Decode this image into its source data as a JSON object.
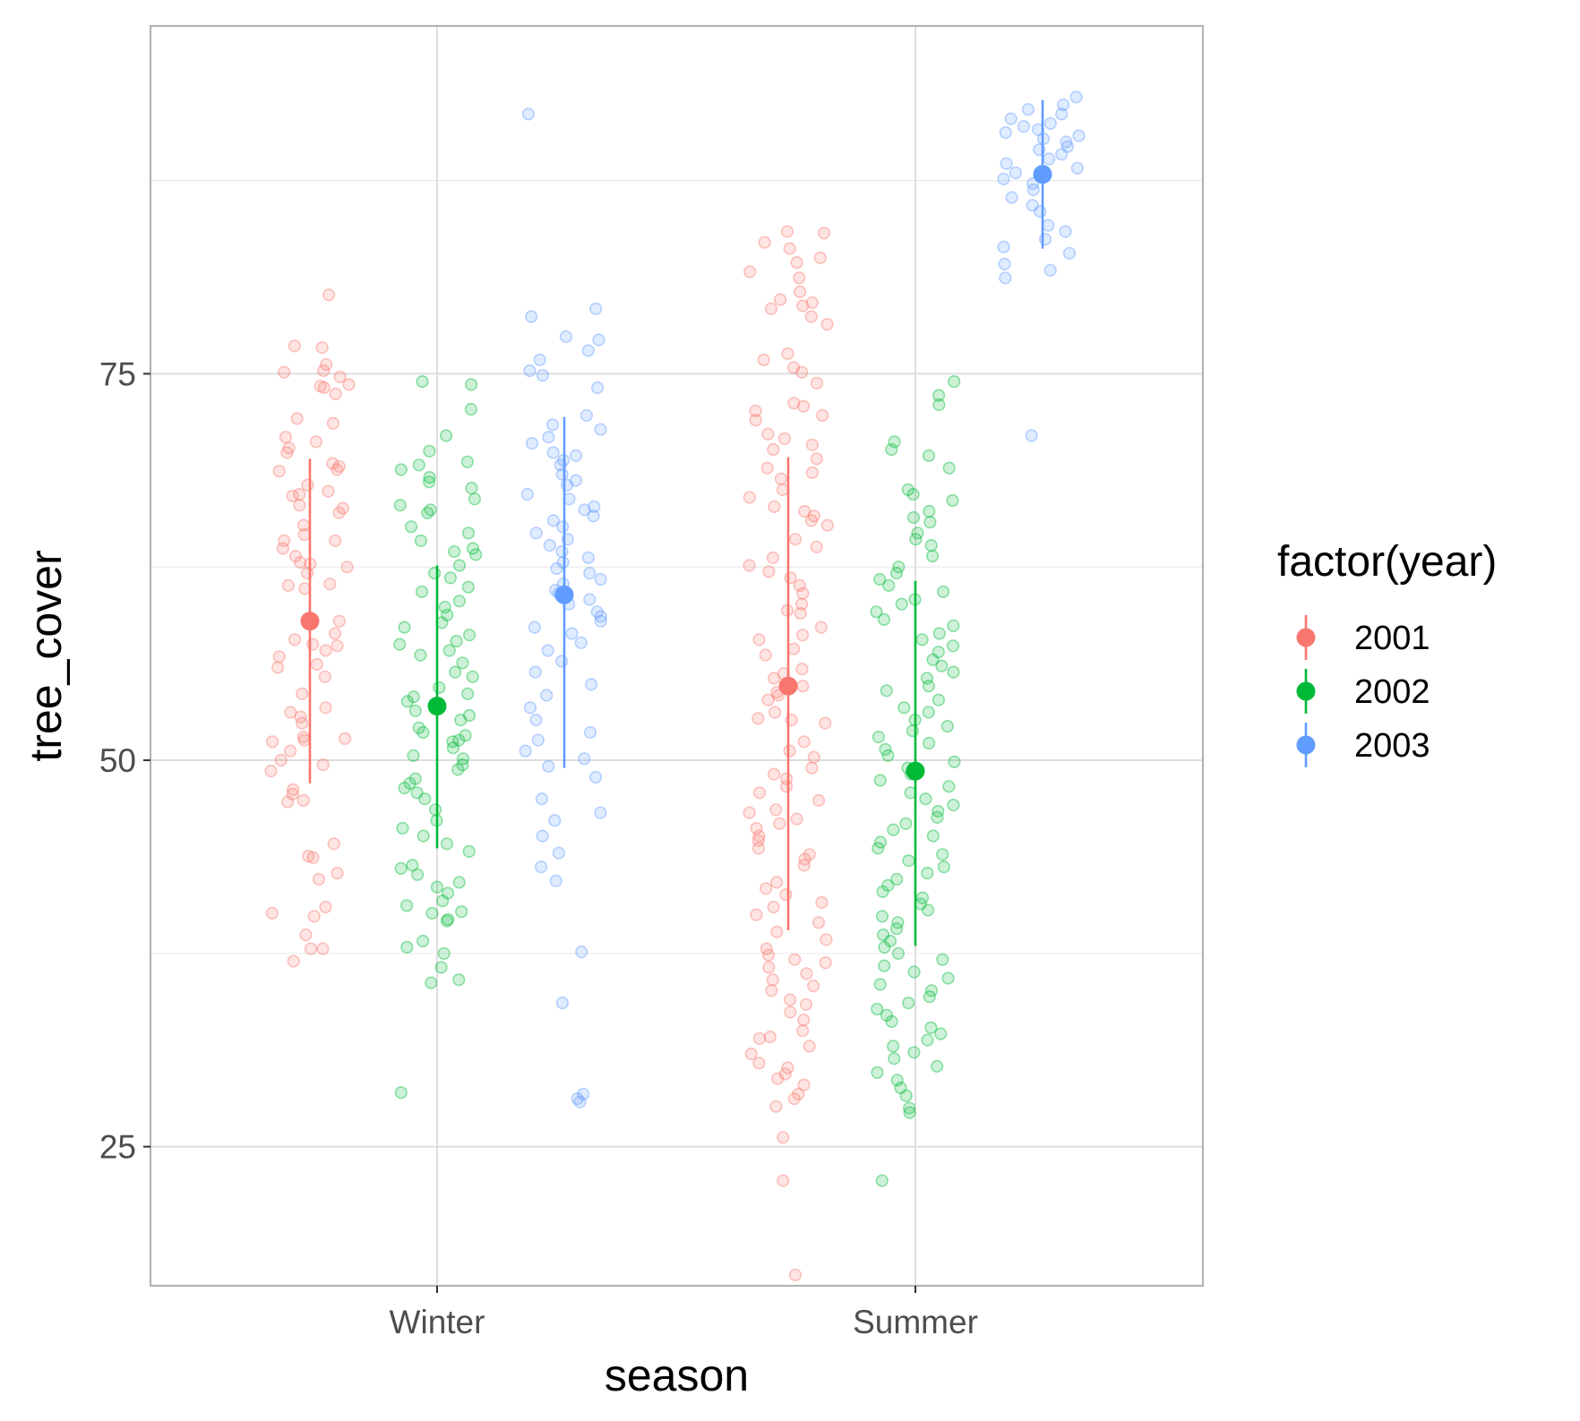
{
  "chart_data": {
    "type": "scatter",
    "title": "",
    "xlabel": "season",
    "ylabel": "tree_cover",
    "categories": [
      "Winter",
      "Summer"
    ],
    "ylim": [
      16,
      97.5
    ],
    "yticks": [
      25,
      50,
      75
    ],
    "grid": true,
    "legend": {
      "title": "factor(year)",
      "position": "right",
      "entries": [
        "2001",
        "2002",
        "2003"
      ]
    },
    "colors": {
      "2001": "#F8766D",
      "2002": "#00BA38",
      "2003": "#619CFF"
    },
    "series": [
      {
        "name": "2001",
        "groups": [
          {
            "category": "Winter",
            "mean": 59,
            "ymin": 48.5,
            "ymax": 69.5,
            "points": [
              76.7,
              76.8,
              74.2,
              74.3,
              74.1,
              75.2,
              75.1,
              74.8,
              75.6,
              73.7,
              80.1,
              72.1,
              71.8,
              70.9,
              70.6,
              70.2,
              69.9,
              69.2,
              69,
              68.8,
              68.7,
              67.8,
              67.4,
              67.2,
              67.1,
              66.5,
              66.3,
              66,
              65.2,
              64.6,
              64.2,
              64.2,
              63.7,
              63.2,
              62.8,
              62.7,
              62.5,
              62.1,
              61.4,
              61.3,
              61.1,
              59,
              58.2,
              57.8,
              57.5,
              57.4,
              57.1,
              56.7,
              56.2,
              56,
              55.4,
              54.3,
              53.4,
              53.1,
              52.8,
              52.4,
              51.5,
              51.4,
              51.3,
              51.2,
              50.6,
              50,
              49.7,
              49.3,
              48.1,
              47.8,
              47.4,
              47.3,
              44.6,
              43.8,
              43.7,
              42.7,
              42.3,
              40.5,
              40.1,
              39.9,
              38.7,
              37.8,
              37.8,
              37
            ]
          },
          {
            "category": "Summer",
            "mean": 54.8,
            "ymin": 39,
            "ymax": 69.6,
            "points": [
              84.2,
              84.1,
              83.5,
              83.1,
              82.5,
              82.2,
              81.6,
              81.2,
              80.3,
              79.8,
              79.6,
              79.4,
              79.2,
              78.7,
              78.2,
              76.3,
              75.9,
              75.4,
              75.1,
              74.4,
              73.1,
              72.9,
              72.6,
              72.3,
              72,
              71.1,
              70.8,
              70.4,
              70.1,
              69.5,
              68.9,
              68.6,
              68.2,
              67.5,
              67,
              66.4,
              66.1,
              65.8,
              65.5,
              65.2,
              64.3,
              63.8,
              63.1,
              62.6,
              62.2,
              61.8,
              61.3,
              60.8,
              60.1,
              59.7,
              59.5,
              58.6,
              58.1,
              57.8,
              57.2,
              56.8,
              55.9,
              55.6,
              55.3,
              54.8,
              54.4,
              54.2,
              53.9,
              53.1,
              52.7,
              52.6,
              52.4,
              51.2,
              50.6,
              50.2,
              49.5,
              49.1,
              48.8,
              48.3,
              47.9,
              47.4,
              46.8,
              46.6,
              46.2,
              45.9,
              45.6,
              45.1,
              44.8,
              44.3,
              43.9,
              43.6,
              43.2,
              42.1,
              41.7,
              41.3,
              40.8,
              40.5,
              40,
              39.5,
              38.9,
              38.4,
              37.8,
              37.4,
              37.1,
              36.9,
              36.6,
              36.2,
              35.8,
              35.4,
              35.1,
              34.5,
              34.2,
              33.7,
              33.2,
              32.5,
              32.1,
              32,
              31.5,
              31,
              30.4,
              30.1,
              29.7,
              29.4,
              29,
              28.4,
              28.1,
              27.6,
              25.6,
              22.8,
              16.7
            ]
          }
        ]
      },
      {
        "name": "2002",
        "groups": [
          {
            "category": "Winter",
            "mean": 53.5,
            "ymin": 44.3,
            "ymax": 62.6,
            "points": [
              74.5,
              74.3,
              72.7,
              71,
              70,
              69.3,
              69.1,
              68.8,
              68.3,
              68,
              67.6,
              66.9,
              66.5,
              66.2,
              66,
              65.1,
              64.7,
              64.2,
              63.7,
              63.5,
              63.3,
              62.6,
              62.1,
              61.8,
              61.2,
              60.9,
              60.3,
              59.9,
              59.4,
              58.9,
              58.6,
              58.1,
              57.7,
              57.5,
              57.1,
              56.8,
              56.3,
              55.7,
              55.4,
              54.7,
              54.3,
              54.1,
              53.8,
              53.2,
              52.9,
              52.6,
              52.1,
              51.8,
              51.6,
              51.3,
              51.2,
              50.8,
              50.3,
              50.1,
              49.7,
              49.4,
              48.8,
              48.5,
              48.2,
              47.9,
              47.5,
              46.8,
              46.1,
              45.6,
              45.1,
              44.6,
              44.1,
              43.2,
              43,
              42.6,
              42.1,
              41.8,
              41.4,
              40.9,
              40.6,
              40.2,
              40.1,
              39.7,
              39.6,
              38.3,
              37.9,
              37.5,
              36.6,
              35.8,
              35.6,
              28.5
            ]
          },
          {
            "category": "Summer",
            "mean": 49.3,
            "ymin": 38,
            "ymax": 61.6,
            "points": [
              74.5,
              73.6,
              73,
              70.6,
              70.1,
              69.7,
              68.9,
              67.5,
              67.2,
              66.8,
              66.1,
              65.7,
              65.4,
              64.7,
              64.3,
              63.9,
              63.2,
              62.5,
              62.1,
              61.7,
              61.3,
              60.9,
              60.4,
              60.1,
              59.6,
              59.1,
              58.7,
              58.2,
              57.8,
              57.4,
              57,
              56.5,
              56.1,
              55.7,
              55.3,
              54.8,
              54.5,
              53.9,
              53.4,
              53.1,
              52.6,
              52.2,
              51.9,
              51.5,
              51.1,
              50.7,
              50.3,
              49.9,
              49.5,
              49.1,
              48.7,
              48.3,
              47.9,
              47.5,
              47.1,
              46.7,
              46.3,
              45.9,
              45.5,
              45.1,
              44.7,
              44.3,
              43.9,
              43.5,
              43.1,
              42.7,
              42.3,
              41.9,
              41.5,
              41.1,
              40.7,
              40.3,
              39.9,
              39.5,
              39.1,
              38.7,
              38.3,
              37.9,
              37.5,
              37.1,
              36.7,
              36.3,
              35.9,
              35.5,
              35.1,
              34.7,
              34.3,
              33.9,
              33.5,
              33.1,
              32.7,
              32.3,
              31.9,
              31.5,
              31.1,
              30.7,
              30.2,
              29.8,
              29.3,
              28.8,
              28.3,
              27.5,
              27.2,
              22.8
            ]
          }
        ]
      },
      {
        "name": "2003",
        "groups": [
          {
            "category": "Winter",
            "mean": 60.7,
            "ymin": 49.5,
            "ymax": 72.2,
            "points": [
              91.8,
              79.2,
              78.7,
              77.4,
              77.2,
              76.5,
              75.9,
              75.2,
              74.9,
              74.1,
              72.3,
              71.7,
              71.4,
              70.9,
              70.5,
              69.9,
              69.7,
              69.4,
              69.1,
              68.5,
              68.1,
              67.8,
              67.2,
              66.9,
              66.4,
              66.2,
              65.8,
              65.5,
              65.1,
              64.7,
              64.3,
              63.9,
              63.5,
              63.1,
              62.8,
              62.4,
              62.1,
              61.7,
              61.4,
              61,
              60.8,
              60.4,
              60.1,
              59.6,
              59.3,
              59,
              58.6,
              58.2,
              57.6,
              57.1,
              56.4,
              55.7,
              54.9,
              54.2,
              53.4,
              52.6,
              51.8,
              51.3,
              50.6,
              50.1,
              49.6,
              48.9,
              47.5,
              46.6,
              46.1,
              45.1,
              44,
              43.1,
              42.2,
              37.6,
              34.3,
              28.4,
              28.1,
              27.9
            ]
          },
          {
            "category": "Summer",
            "mean": 87.9,
            "ymin": 83.1,
            "ymax": 92.7,
            "points": [
              92.9,
              92.4,
              92.1,
              91.8,
              91.5,
              91.2,
              91,
              90.8,
              90.6,
              90.4,
              90.2,
              90,
              89.7,
              89.5,
              89.2,
              88.9,
              88.6,
              88.3,
              88,
              87.6,
              87.3,
              86.9,
              86.4,
              85.9,
              85.5,
              84.6,
              84.2,
              83.7,
              83.2,
              82.8,
              82.1,
              81.7,
              81.2,
              71
            ]
          }
        ]
      }
    ]
  }
}
